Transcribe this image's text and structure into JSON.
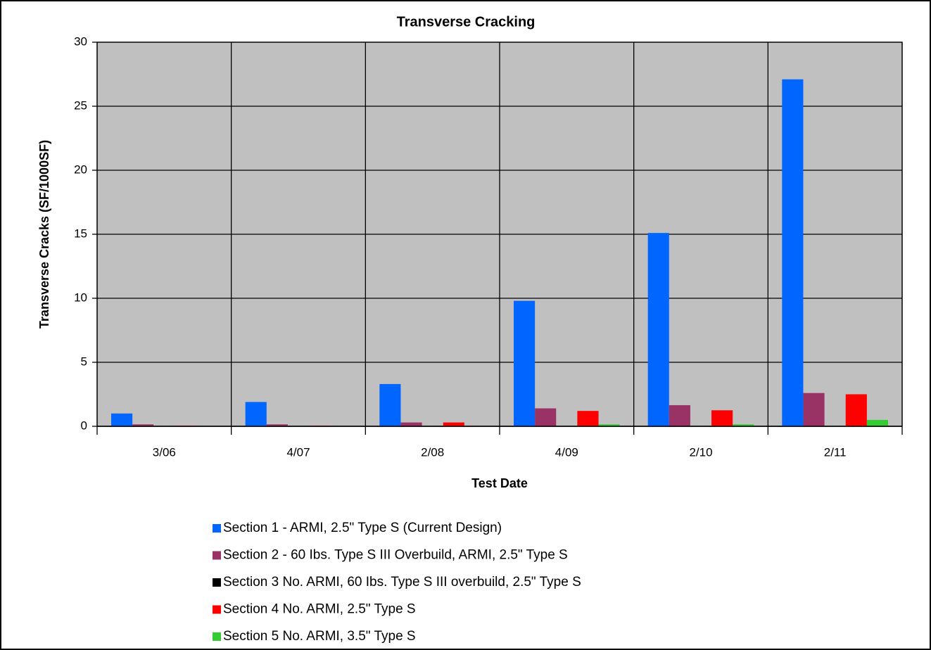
{
  "chart_data": {
    "type": "bar",
    "title": "Transverse Cracking",
    "x_label": "Test Date",
    "y_label": "Transverse Cracks (SF/1000SF)",
    "categories": [
      "3/06",
      "4/07",
      "2/08",
      "4/09",
      "2/10",
      "2/11"
    ],
    "series": [
      {
        "name": "Section 1 - ARMI, 2.5\" Type S (Current Design)",
        "color": "#0066ff",
        "values": [
          1.0,
          1.9,
          3.3,
          9.8,
          15.1,
          27.1
        ]
      },
      {
        "name": "Section 2 - 60 Ibs. Type S III Overbuild, ARMI, 2.5\" Type S",
        "color": "#993366",
        "values": [
          0.15,
          0.15,
          0.3,
          1.4,
          1.65,
          2.6
        ]
      },
      {
        "name": "Section 3 No. ARMI, 60 Ibs. Type S III overbuild, 2.5\" Type S",
        "color": "#000000",
        "values": [
          0,
          0,
          0,
          0,
          0,
          0
        ]
      },
      {
        "name": "Section 4 No. ARMI, 2.5\" Type S",
        "color": "#ff0000",
        "values": [
          0.05,
          0.05,
          0.3,
          1.2,
          1.25,
          2.5
        ]
      },
      {
        "name": "Section 5 No. ARMI, 3.5\" Type S",
        "color": "#33cc33",
        "values": [
          0,
          0,
          0,
          0.15,
          0.15,
          0.5
        ]
      }
    ],
    "ylim": [
      0,
      30
    ],
    "yticks": [
      0,
      5,
      10,
      15,
      20,
      25,
      30
    ],
    "grid": true,
    "legend": "bottom"
  }
}
